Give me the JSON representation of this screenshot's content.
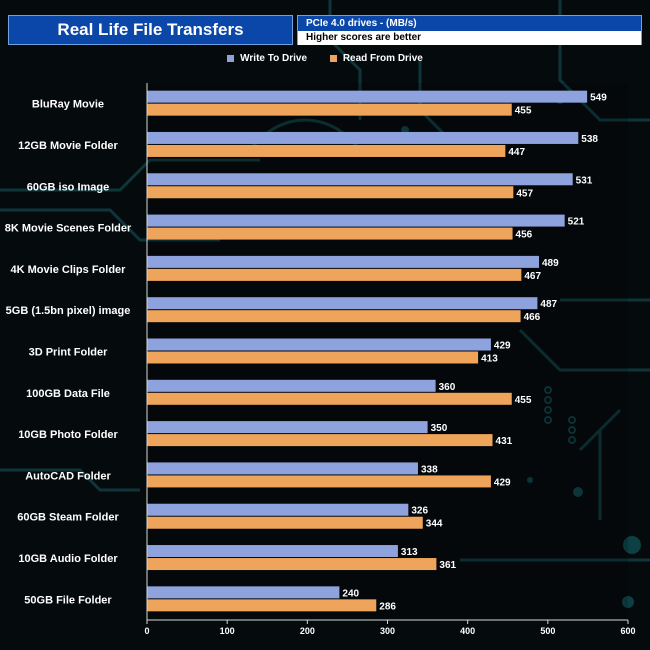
{
  "header": {
    "title": "Real Life File Transfers",
    "subtitle": "PCIe 4.0 drives - (MB/s)",
    "note": "Higher scores are better"
  },
  "colors": {
    "write": "#8ea2dd",
    "read": "#eea45a",
    "header_bg": "#0a47a8"
  },
  "chart_data": {
    "type": "bar",
    "orientation": "horizontal",
    "categories": [
      "BluRay Movie",
      "12GB Movie Folder",
      "60GB iso Image",
      "8K Movie Scenes Folder",
      "4K Movie Clips Folder",
      "5GB (1.5bn pixel) image",
      "3D Print Folder",
      "100GB Data File",
      "10GB Photo Folder",
      "AutoCAD Folder",
      "60GB Steam Folder",
      "10GB Audio Folder",
      "50GB File Folder"
    ],
    "series": [
      {
        "name": "Write To  Drive",
        "values": [
          549,
          538,
          531,
          521,
          489,
          487,
          429,
          360,
          350,
          338,
          326,
          313,
          240
        ]
      },
      {
        "name": "Read From  Drive",
        "values": [
          455,
          447,
          457,
          456,
          467,
          466,
          413,
          455,
          431,
          429,
          344,
          361,
          286
        ]
      }
    ],
    "xlim": [
      0,
      600
    ],
    "xticks": [
      "0",
      "100",
      "200",
      "300",
      "400",
      "500",
      "600"
    ],
    "legend_position": "top-center",
    "grid": false
  }
}
